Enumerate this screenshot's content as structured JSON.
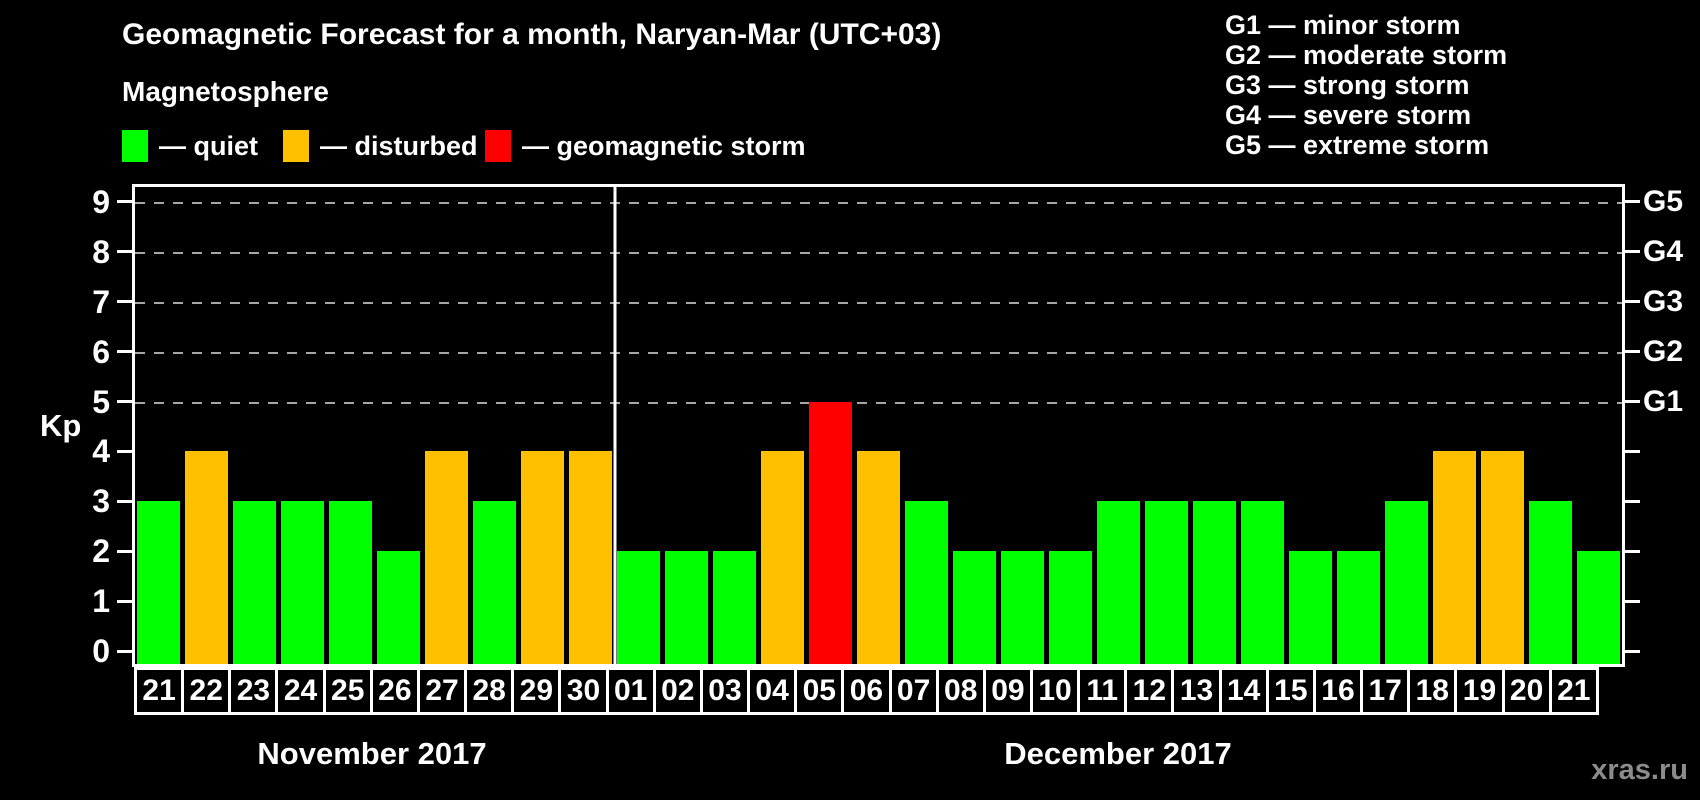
{
  "title": "Geomagnetic Forecast for a month, Naryan-Mar (UTC+03)",
  "subtitle": "Magnetosphere",
  "magnetosphere_legend": [
    {
      "status": "quiet",
      "label": "— quiet",
      "color": "#00ff00"
    },
    {
      "status": "disturbed",
      "label": "— disturbed",
      "color": "#ffc000"
    },
    {
      "status": "storm",
      "label": "— geomagnetic storm",
      "color": "#ff0000"
    }
  ],
  "storm_scale_legend": [
    "G1 — minor storm",
    "G2 — moderate storm",
    "G3 — strong storm",
    "G4 — severe storm",
    "G5 — extreme storm"
  ],
  "watermark": "xras.ru",
  "colors": {
    "background": "#000000",
    "axis": "#ffffff",
    "gridline": "#a6a6a6",
    "quiet": "#00ff00",
    "disturbed": "#ffc000",
    "storm": "#ff0000",
    "watermark": "#8c8c8c"
  },
  "chart_data": {
    "type": "bar",
    "ylabel": "Kp",
    "ylim": [
      0,
      9
    ],
    "y_ticks": [
      0,
      1,
      2,
      3,
      4,
      5,
      6,
      7,
      8,
      9
    ],
    "gridlines_at_kp": [
      5,
      6,
      7,
      8,
      9
    ],
    "grid": "dashed horizontal at storm levels only",
    "legend_position": "top",
    "right_axis": [
      {
        "kp": 5,
        "label": "G1"
      },
      {
        "kp": 6,
        "label": "G2"
      },
      {
        "kp": 7,
        "label": "G3"
      },
      {
        "kp": 8,
        "label": "G4"
      },
      {
        "kp": 9,
        "label": "G5"
      }
    ],
    "x_axis_months": [
      {
        "label": "November 2017",
        "days": [
          "21",
          "22",
          "23",
          "24",
          "25",
          "26",
          "27",
          "28",
          "29",
          "30"
        ]
      },
      {
        "label": "December 2017",
        "days": [
          "01",
          "02",
          "03",
          "04",
          "05",
          "06",
          "07",
          "08",
          "09",
          "10",
          "11",
          "12",
          "13",
          "14",
          "15",
          "16",
          "17",
          "18",
          "19",
          "20",
          "21"
        ]
      }
    ],
    "bars": [
      {
        "month": "November 2017",
        "day": "21",
        "kp": 3,
        "status": "quiet"
      },
      {
        "month": "November 2017",
        "day": "22",
        "kp": 4,
        "status": "disturbed"
      },
      {
        "month": "November 2017",
        "day": "23",
        "kp": 3,
        "status": "quiet"
      },
      {
        "month": "November 2017",
        "day": "24",
        "kp": 3,
        "status": "quiet"
      },
      {
        "month": "November 2017",
        "day": "25",
        "kp": 3,
        "status": "quiet"
      },
      {
        "month": "November 2017",
        "day": "26",
        "kp": 2,
        "status": "quiet"
      },
      {
        "month": "November 2017",
        "day": "27",
        "kp": 4,
        "status": "disturbed"
      },
      {
        "month": "November 2017",
        "day": "28",
        "kp": 3,
        "status": "quiet"
      },
      {
        "month": "November 2017",
        "day": "29",
        "kp": 4,
        "status": "disturbed"
      },
      {
        "month": "November 2017",
        "day": "30",
        "kp": 4,
        "status": "disturbed"
      },
      {
        "month": "December 2017",
        "day": "01",
        "kp": 2,
        "status": "quiet"
      },
      {
        "month": "December 2017",
        "day": "02",
        "kp": 2,
        "status": "quiet"
      },
      {
        "month": "December 2017",
        "day": "03",
        "kp": 2,
        "status": "quiet"
      },
      {
        "month": "December 2017",
        "day": "04",
        "kp": 4,
        "status": "disturbed"
      },
      {
        "month": "December 2017",
        "day": "05",
        "kp": 5,
        "status": "storm"
      },
      {
        "month": "December 2017",
        "day": "06",
        "kp": 4,
        "status": "disturbed"
      },
      {
        "month": "December 2017",
        "day": "07",
        "kp": 3,
        "status": "quiet"
      },
      {
        "month": "December 2017",
        "day": "08",
        "kp": 2,
        "status": "quiet"
      },
      {
        "month": "December 2017",
        "day": "09",
        "kp": 2,
        "status": "quiet"
      },
      {
        "month": "December 2017",
        "day": "10",
        "kp": 2,
        "status": "quiet"
      },
      {
        "month": "December 2017",
        "day": "11",
        "kp": 3,
        "status": "quiet"
      },
      {
        "month": "December 2017",
        "day": "12",
        "kp": 3,
        "status": "quiet"
      },
      {
        "month": "December 2017",
        "day": "13",
        "kp": 3,
        "status": "quiet"
      },
      {
        "month": "December 2017",
        "day": "14",
        "kp": 3,
        "status": "quiet"
      },
      {
        "month": "December 2017",
        "day": "15",
        "kp": 2,
        "status": "quiet"
      },
      {
        "month": "December 2017",
        "day": "16",
        "kp": 2,
        "status": "quiet"
      },
      {
        "month": "December 2017",
        "day": "17",
        "kp": 3,
        "status": "quiet"
      },
      {
        "month": "December 2017",
        "day": "18",
        "kp": 4,
        "status": "disturbed"
      },
      {
        "month": "December 2017",
        "day": "19",
        "kp": 4,
        "status": "disturbed"
      },
      {
        "month": "December 2017",
        "day": "20",
        "kp": 3,
        "status": "quiet"
      },
      {
        "month": "December 2017",
        "day": "21",
        "kp": 2,
        "status": "quiet"
      }
    ]
  }
}
